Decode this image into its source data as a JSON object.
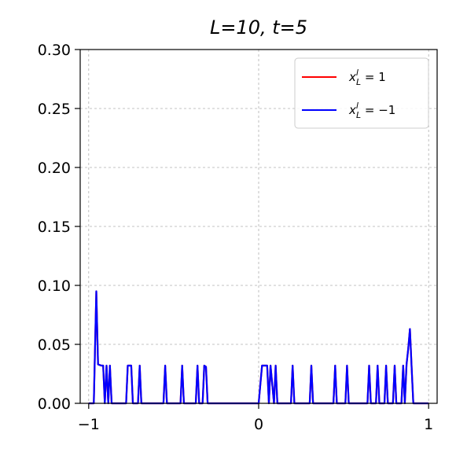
{
  "chart_data": {
    "type": "line",
    "title": "L=10, t=5",
    "xlabel": "",
    "ylabel": "",
    "xlim": [
      -1.05,
      1.05
    ],
    "ylim": [
      0,
      0.3
    ],
    "grid": true,
    "legend_position": "top-right",
    "x_ticks": [
      -1,
      0,
      1
    ],
    "x_tick_labels": [
      "−1",
      "0",
      "1"
    ],
    "y_ticks": [
      0,
      0.05,
      0.1,
      0.15,
      0.2,
      0.25,
      0.3
    ],
    "y_tick_labels": [
      "0.00",
      "0.05",
      "0.10",
      "0.15",
      "0.20",
      "0.25",
      "0.30"
    ],
    "series": [
      {
        "name": "x_L^l = 1",
        "color": "#ff0000",
        "x": [
          -1.0,
          -0.97,
          -0.955,
          -0.945,
          -0.925,
          -0.915,
          -0.905,
          -0.895,
          -0.885,
          -0.875,
          -0.865,
          -0.855,
          -0.845,
          -0.835,
          -0.78,
          -0.77,
          -0.76,
          -0.75,
          -0.74,
          -0.71,
          -0.7,
          -0.69,
          -0.56,
          -0.55,
          -0.54,
          -0.46,
          -0.45,
          -0.44,
          -0.37,
          -0.36,
          -0.35,
          -0.33,
          -0.32,
          -0.31,
          -0.3,
          -0.29,
          0.0,
          0.02,
          0.03,
          0.05,
          0.06,
          0.07,
          0.09,
          0.1,
          0.11,
          0.19,
          0.2,
          0.21,
          0.3,
          0.31,
          0.32,
          0.44,
          0.45,
          0.46,
          0.51,
          0.52,
          0.53,
          0.64,
          0.65,
          0.66,
          0.69,
          0.7,
          0.71,
          0.74,
          0.75,
          0.76,
          0.79,
          0.8,
          0.81,
          0.84,
          0.85,
          0.86,
          0.87,
          0.88,
          0.89,
          0.9,
          0.91,
          0.92,
          1.0
        ],
        "y": [
          0,
          0,
          0.095,
          0.033,
          0.032,
          0.032,
          0,
          0.032,
          0,
          0.032,
          0,
          0,
          0,
          0,
          0,
          0.032,
          0.032,
          0.032,
          0,
          0,
          0.032,
          0,
          0,
          0.032,
          0,
          0,
          0.032,
          0,
          0,
          0.032,
          0,
          0,
          0.032,
          0.031,
          0,
          0,
          0,
          0.032,
          0.032,
          0.032,
          0,
          0.032,
          0,
          0.032,
          0,
          0,
          0.032,
          0,
          0,
          0.032,
          0,
          0,
          0.032,
          0,
          0,
          0.032,
          0,
          0,
          0.032,
          0,
          0,
          0.032,
          0,
          0,
          0.032,
          0,
          0,
          0.032,
          0,
          0,
          0.032,
          0,
          0.033,
          0.046,
          0.063,
          0.03,
          0,
          0,
          0
        ]
      },
      {
        "name": "x_L^l = −1",
        "color": "#0000ff",
        "x": [
          -1.0,
          -0.97,
          -0.955,
          -0.945,
          -0.925,
          -0.915,
          -0.905,
          -0.895,
          -0.885,
          -0.875,
          -0.865,
          -0.855,
          -0.845,
          -0.835,
          -0.78,
          -0.77,
          -0.76,
          -0.75,
          -0.74,
          -0.71,
          -0.7,
          -0.69,
          -0.56,
          -0.55,
          -0.54,
          -0.46,
          -0.45,
          -0.44,
          -0.37,
          -0.36,
          -0.35,
          -0.33,
          -0.32,
          -0.31,
          -0.3,
          -0.29,
          0.0,
          0.02,
          0.03,
          0.05,
          0.06,
          0.07,
          0.09,
          0.1,
          0.11,
          0.19,
          0.2,
          0.21,
          0.3,
          0.31,
          0.32,
          0.44,
          0.45,
          0.46,
          0.51,
          0.52,
          0.53,
          0.64,
          0.65,
          0.66,
          0.69,
          0.7,
          0.71,
          0.74,
          0.75,
          0.76,
          0.79,
          0.8,
          0.81,
          0.84,
          0.85,
          0.86,
          0.87,
          0.88,
          0.89,
          0.9,
          0.91,
          0.92,
          1.0
        ],
        "y": [
          0,
          0,
          0.095,
          0.033,
          0.032,
          0.032,
          0,
          0.032,
          0,
          0.032,
          0,
          0,
          0,
          0,
          0,
          0.032,
          0.032,
          0.032,
          0,
          0,
          0.032,
          0,
          0,
          0.032,
          0,
          0,
          0.032,
          0,
          0,
          0.032,
          0,
          0,
          0.032,
          0.031,
          0,
          0,
          0,
          0.032,
          0.032,
          0.032,
          0,
          0.032,
          0,
          0.032,
          0,
          0,
          0.032,
          0,
          0,
          0.032,
          0,
          0,
          0.032,
          0,
          0,
          0.032,
          0,
          0,
          0.032,
          0,
          0,
          0.032,
          0,
          0,
          0.032,
          0,
          0,
          0.032,
          0,
          0,
          0.032,
          0,
          0.033,
          0.046,
          0.063,
          0.03,
          0,
          0,
          0
        ]
      }
    ]
  }
}
